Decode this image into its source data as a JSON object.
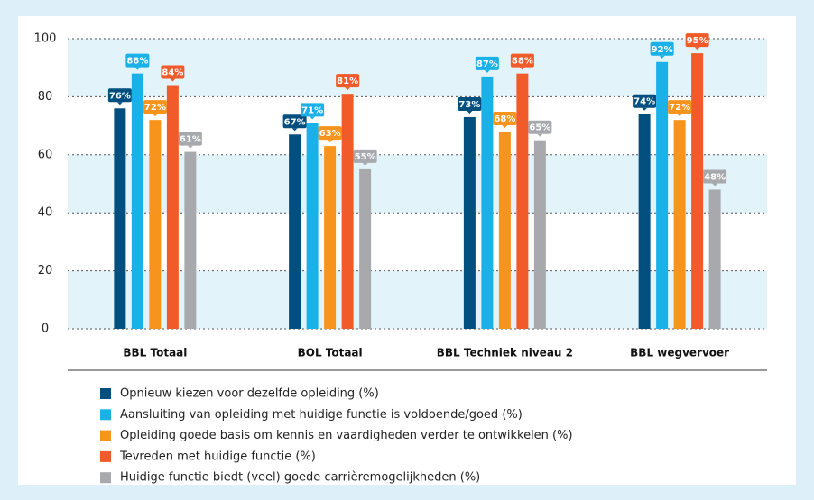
{
  "chart_data": {
    "type": "bar",
    "categories": [
      "BBL Totaal",
      "BOL Totaal",
      "BBL Techniek niveau 2",
      "BBL wegvervoer"
    ],
    "series": [
      {
        "name": "Opnieuw kiezen voor dezelfde opleiding (%)",
        "color": "#004f7f",
        "values": [
          76,
          67,
          73,
          74
        ],
        "value_labels": [
          "76%",
          "67%",
          "73%",
          "74%"
        ]
      },
      {
        "name": "Aansluiting van opleiding met huidige functie is voldoende/goed (%)",
        "color": "#1ab0e8",
        "values": [
          88,
          71,
          87,
          92
        ],
        "value_labels": [
          "88%",
          "71%",
          "87%",
          "92%"
        ]
      },
      {
        "name": "Opleiding goede basis om kennis en vaardigheden verder te ontwikkelen (%)",
        "color": "#f7941d",
        "values": [
          72,
          63,
          68,
          72
        ],
        "value_labels": [
          "72%",
          "63%",
          "68%",
          "72%"
        ]
      },
      {
        "name": "Tevreden met huidige functie (%)",
        "color": "#f15a29",
        "values": [
          84,
          81,
          88,
          95
        ],
        "value_labels": [
          "84%",
          "81%",
          "88%",
          "95%"
        ]
      },
      {
        "name": "Huidige functie biedt (veel) goede carrièremogelijkheden (%)",
        "color": "#a7a9ac",
        "values": [
          61,
          55,
          65,
          48
        ],
        "value_labels": [
          "61%",
          "55%",
          "65%",
          "48%"
        ]
      }
    ],
    "ylim": [
      0,
      100
    ],
    "yticks": [
      0,
      20,
      40,
      60,
      80,
      100
    ],
    "grid": true
  }
}
